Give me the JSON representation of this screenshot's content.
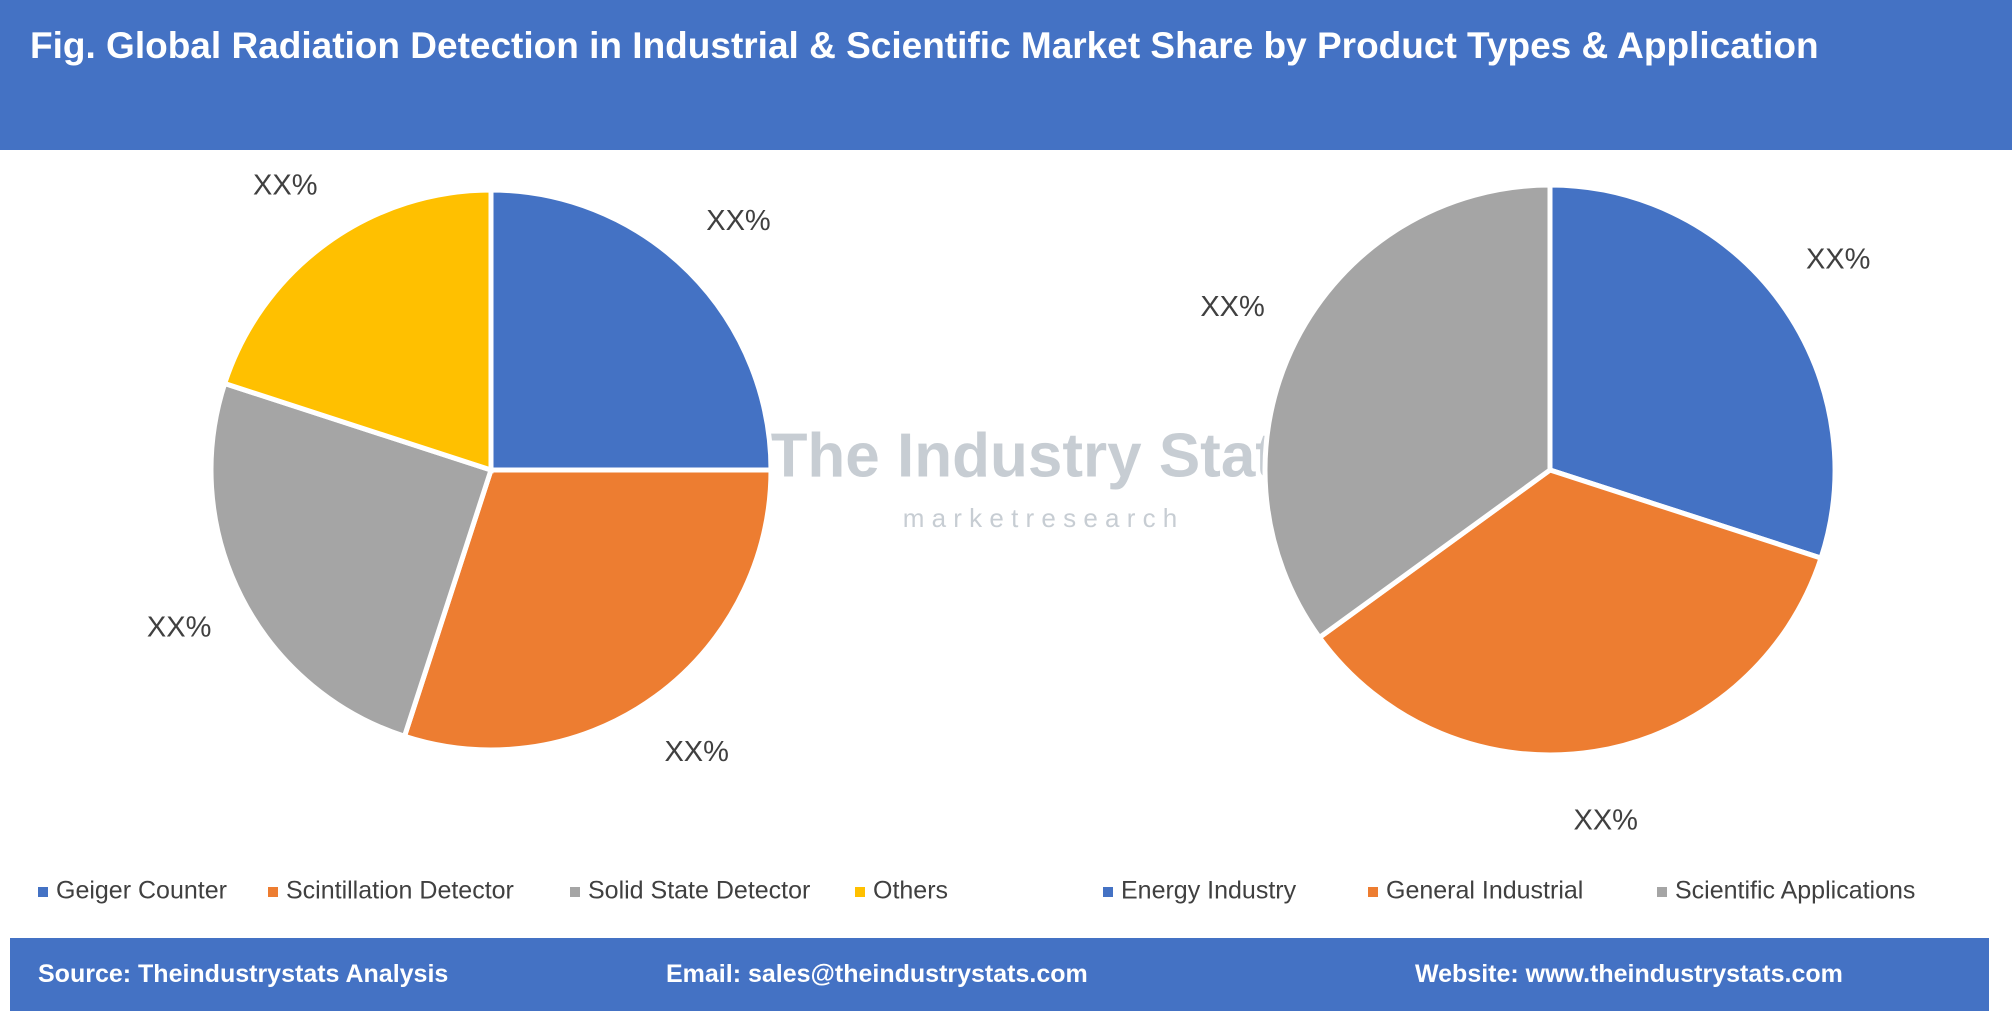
{
  "title": "Fig. Global Radiation Detection in Industrial & Scientific Market Share by Product Types & Application",
  "chart_data": [
    {
      "type": "pie",
      "categories": [
        "Geiger Counter",
        "Scintillation Detector",
        "Solid State Detector",
        "Others"
      ],
      "colors": [
        "#4472c4",
        "#ed7d31",
        "#a5a5a5",
        "#ffc000"
      ],
      "values": [
        25,
        30,
        25,
        20
      ],
      "value_labels": [
        "XX%",
        "XX%",
        "XX%",
        "XX%"
      ]
    },
    {
      "type": "pie",
      "categories": [
        "Energy Industry",
        "General Industrial",
        "Scientific Applications"
      ],
      "colors": [
        "#4472c4",
        "#ed7d31",
        "#a5a5a5"
      ],
      "values": [
        30,
        35,
        35
      ],
      "value_labels": [
        "XX%",
        "XX%",
        "XX%"
      ]
    }
  ],
  "watermark": {
    "name": "The Industry Stats",
    "tagline": "m a r k e t     r e s e a r c h"
  },
  "footer": {
    "source": "Source: Theindustrystats Analysis",
    "email": "Email: sales@theindustrystats.com",
    "website": "Website: www.theindustrystats.com"
  }
}
